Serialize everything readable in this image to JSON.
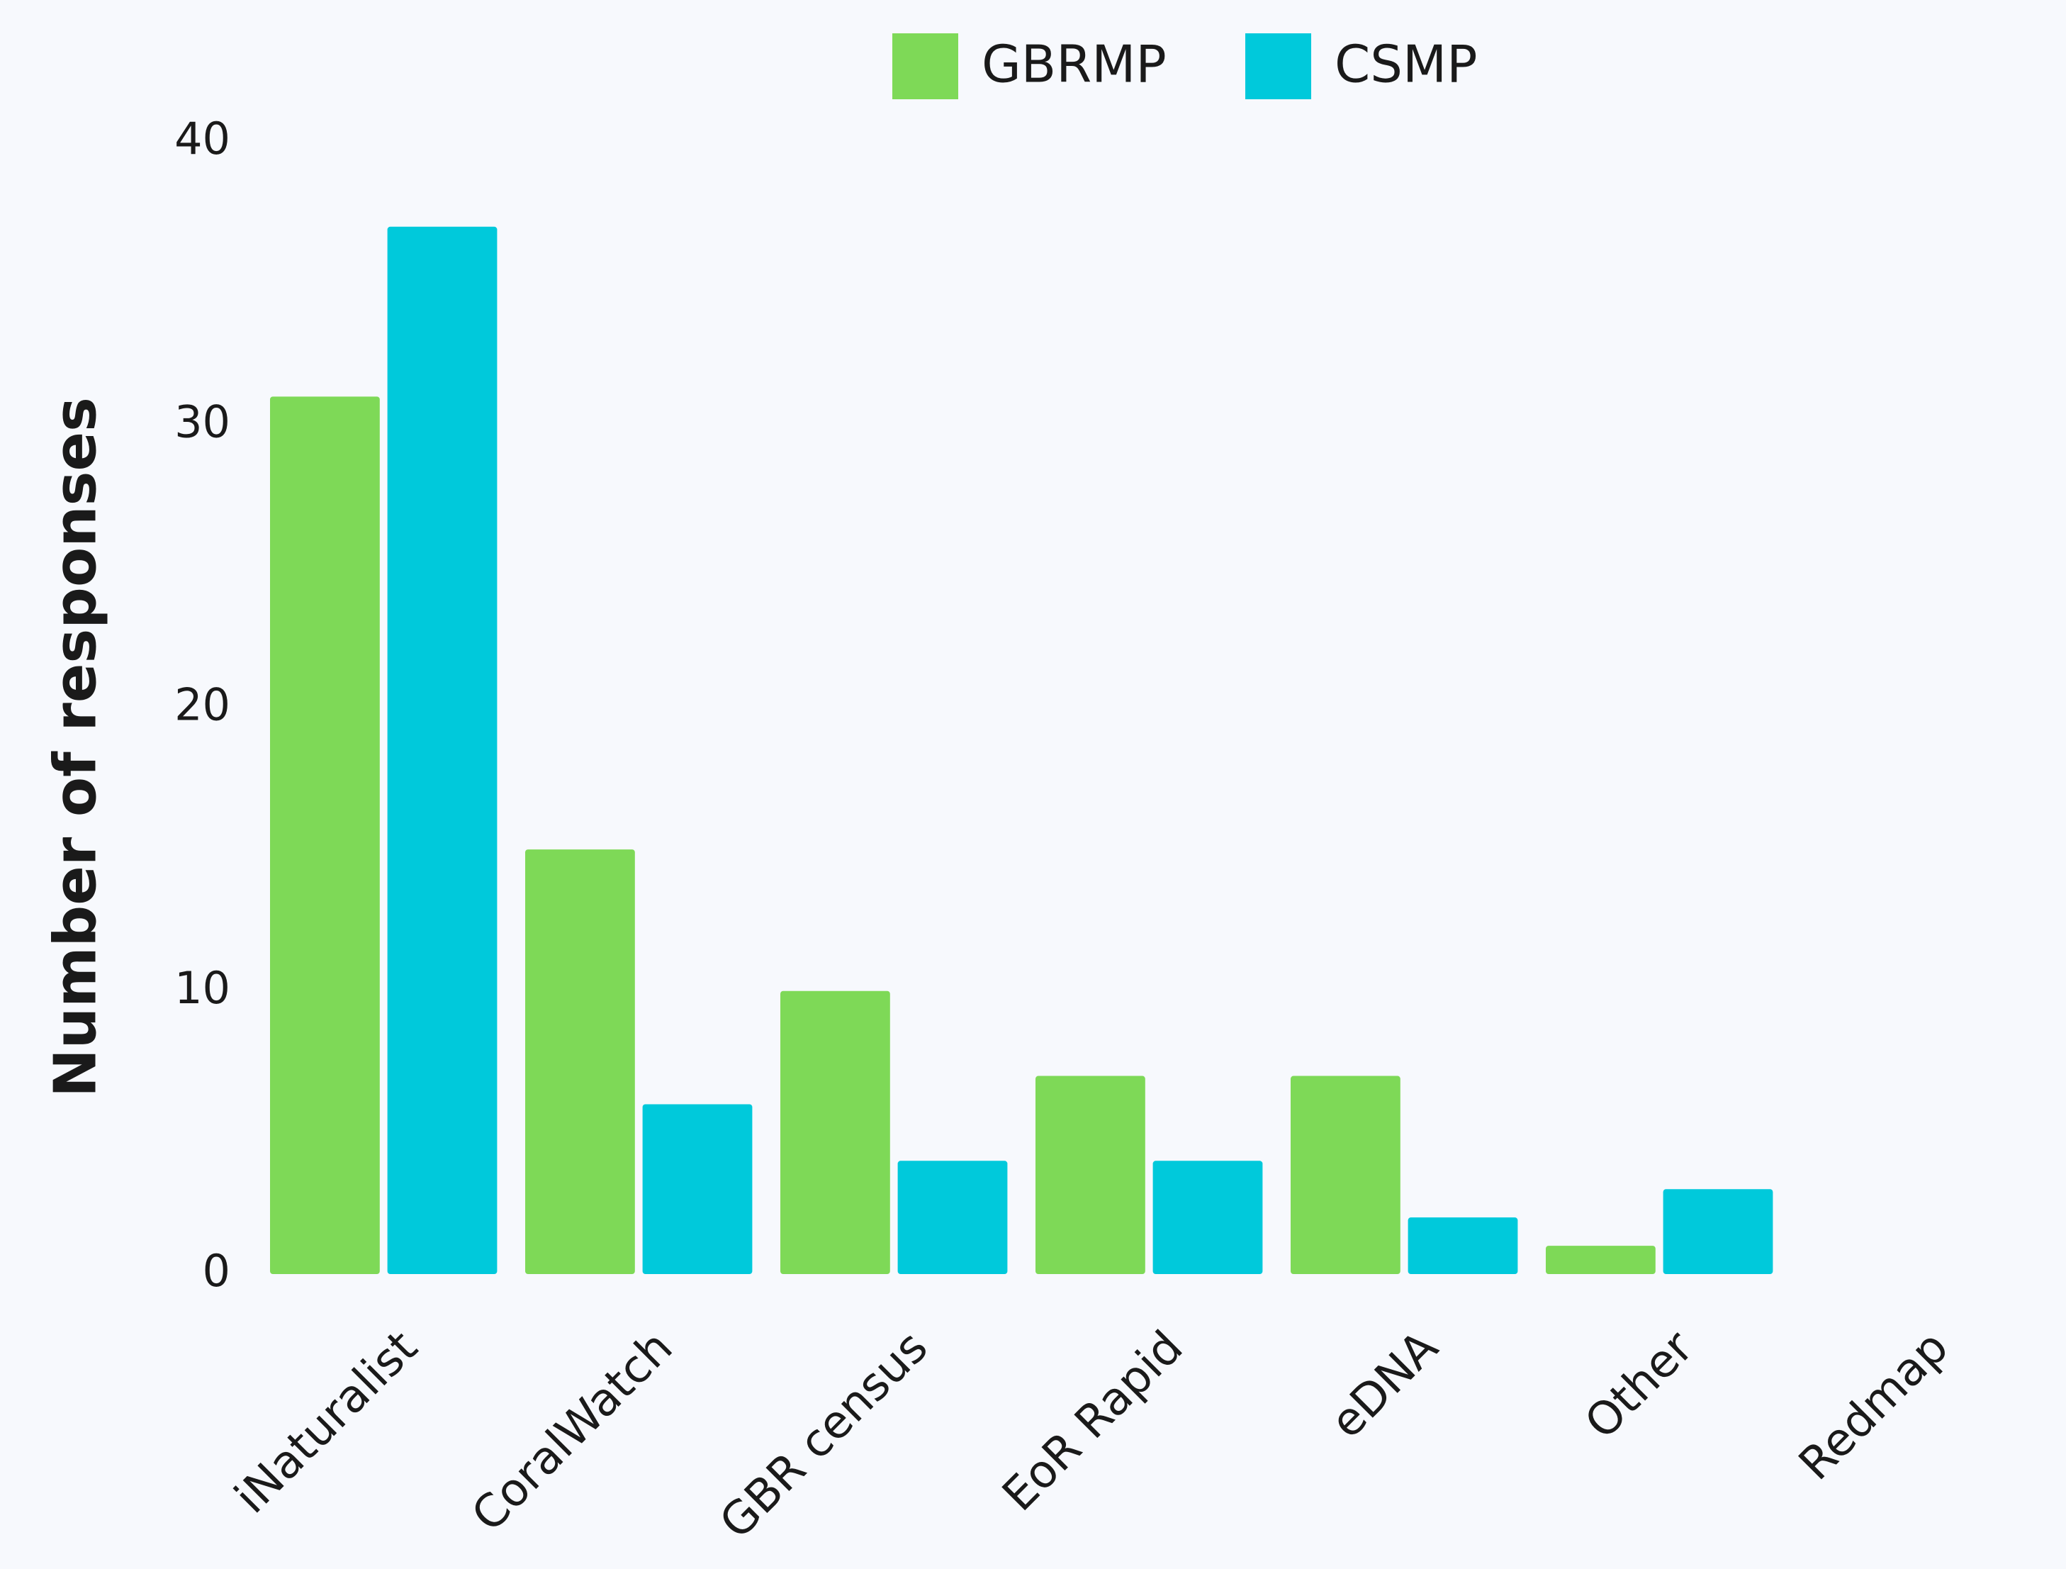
{
  "chart_data": {
    "type": "bar",
    "categories": [
      "iNaturalist",
      "CoralWatch",
      "GBR census",
      "EoR Rapid",
      "eDNA",
      "Other",
      "Redmap"
    ],
    "series": [
      {
        "name": "GBRMP",
        "color": "#7ed957",
        "values": [
          31,
          15,
          10,
          7,
          7,
          1,
          0
        ]
      },
      {
        "name": "CSMP",
        "color": "#00c9db",
        "values": [
          37,
          6,
          4,
          4,
          2,
          3,
          0
        ]
      }
    ],
    "y_label": "Number of responses",
    "ylim": [
      0,
      40
    ],
    "yticks": [
      0,
      10,
      20,
      30,
      40
    ],
    "grid": false,
    "legend": "top"
  }
}
